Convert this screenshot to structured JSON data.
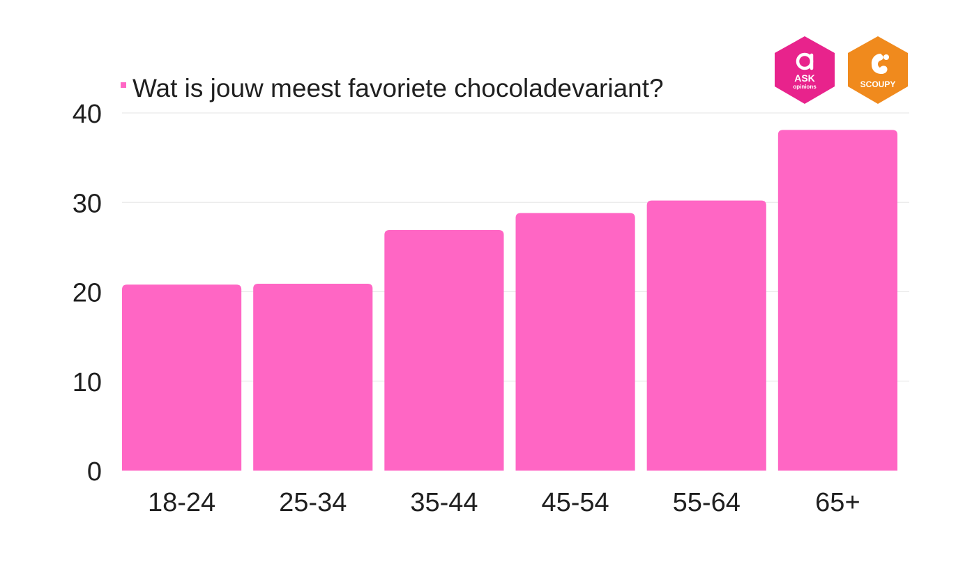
{
  "chart_data": {
    "type": "bar",
    "categories": [
      "18-24",
      "25-34",
      "35-44",
      "45-54",
      "55-64",
      "65+"
    ],
    "series": [
      {
        "name": "Wat is jouw meest favoriete chocoladevariant?",
        "values": [
          20.8,
          20.9,
          26.9,
          28.8,
          30.2,
          38.1
        ],
        "color": "#ff66c4"
      }
    ],
    "ylim": [
      0,
      40
    ],
    "yticks": [
      0,
      10,
      20,
      30,
      40
    ],
    "grid": true,
    "legend_position": "top-left"
  },
  "colors": {
    "bar": "#ff66c4",
    "grid": "#e6e6e6",
    "text": "#1f1f1f",
    "ask_brand": "#e8238c",
    "scoupy_brand": "#f08a1d"
  },
  "logos": {
    "ask": {
      "main": "ASK",
      "sub": "opinions",
      "icon": "ask-a-icon"
    },
    "scoupy": {
      "main": "SCOUPY",
      "icon": "squirrel-icon"
    }
  }
}
